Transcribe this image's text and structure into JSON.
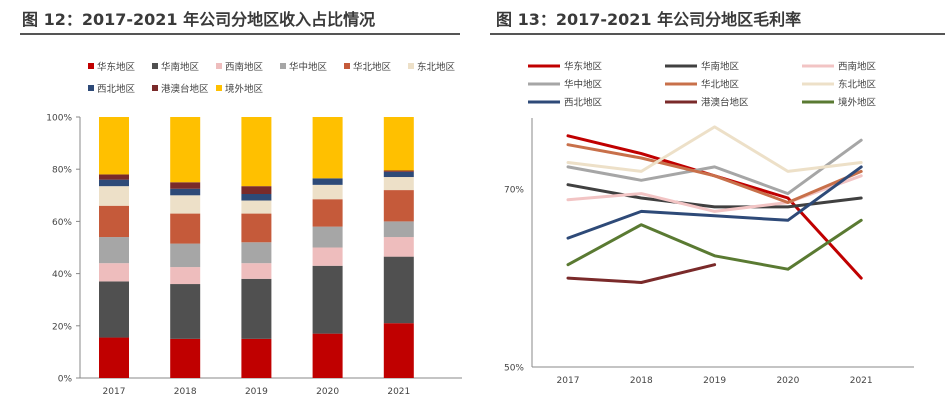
{
  "chart_data": [
    {
      "type": "bar",
      "stacked": true,
      "title": "图 12：2017-2021 年公司分地区收入占比情况",
      "categories": [
        "2017",
        "2018",
        "2019",
        "2020",
        "2021"
      ],
      "ylim": [
        0,
        100
      ],
      "yticks": [
        "0%",
        "20%",
        "40%",
        "60%",
        "80%",
        "100%"
      ],
      "legend_position": "top",
      "grid": false,
      "series": [
        {
          "name": "华东地区",
          "color": "#c00000",
          "values": [
            15.5,
            15,
            15,
            17,
            21
          ]
        },
        {
          "name": "华南地区",
          "color": "#505050",
          "values": [
            21.5,
            21,
            23,
            26,
            25.5
          ]
        },
        {
          "name": "西南地区",
          "color": "#eebdbd",
          "values": [
            7,
            6.5,
            6,
            7,
            7.5
          ]
        },
        {
          "name": "华中地区",
          "color": "#a6a6a6",
          "values": [
            10,
            9,
            8,
            8,
            6
          ]
        },
        {
          "name": "华北地区",
          "color": "#c55a3a",
          "values": [
            12,
            11.5,
            11,
            10.5,
            12
          ]
        },
        {
          "name": "东北地区",
          "color": "#ede0c8",
          "values": [
            7.5,
            7,
            5,
            5.5,
            5
          ]
        },
        {
          "name": "西北地区",
          "color": "#2e4a78",
          "values": [
            2.5,
            2.5,
            2.5,
            2.5,
            2
          ]
        },
        {
          "name": "港澳台地区",
          "color": "#7a2a2a",
          "values": [
            2,
            2.5,
            3,
            0,
            0.5
          ]
        },
        {
          "name": "境外地区",
          "color": "#ffc000",
          "values": [
            22,
            25,
            26.5,
            23.5,
            20.5
          ]
        }
      ]
    },
    {
      "type": "line",
      "title": "图 13：2017-2021 年公司分地区毛利率",
      "categories": [
        "2017",
        "2018",
        "2019",
        "2020",
        "2021"
      ],
      "ylim": [
        50,
        78
      ],
      "yticks": [
        "50%",
        "70%"
      ],
      "ytick_values": [
        50,
        70
      ],
      "legend_position": "top",
      "grid": false,
      "series": [
        {
          "name": "华东地区",
          "color": "#c00000",
          "values": [
            76,
            74,
            71.5,
            69,
            60
          ]
        },
        {
          "name": "华南地区",
          "color": "#404040",
          "values": [
            70.5,
            69,
            68,
            68,
            69
          ]
        },
        {
          "name": "西南地区",
          "color": "#f2c4c4",
          "values": [
            68.8,
            69.5,
            67.5,
            68.5,
            71.5
          ]
        },
        {
          "name": "华中地区",
          "color": "#a6a6a6",
          "values": [
            72.5,
            71,
            72.5,
            69.5,
            75.5
          ]
        },
        {
          "name": "华北地区",
          "color": "#c8704a",
          "values": [
            75,
            73.5,
            71.5,
            68.5,
            72
          ]
        },
        {
          "name": "东北地区",
          "color": "#ede0c8",
          "values": [
            73,
            72,
            77,
            72,
            73
          ]
        },
        {
          "name": "西北地区",
          "color": "#2e4a78",
          "values": [
            64.5,
            67.5,
            67,
            66.5,
            72.5
          ]
        },
        {
          "name": "港澳台地区",
          "color": "#7a2a2a",
          "values": [
            60,
            59.5,
            61.5,
            null,
            null
          ]
        },
        {
          "name": "境外地区",
          "color": "#5a7a32",
          "values": [
            61.5,
            66,
            62.5,
            61,
            66.5
          ]
        }
      ]
    }
  ]
}
